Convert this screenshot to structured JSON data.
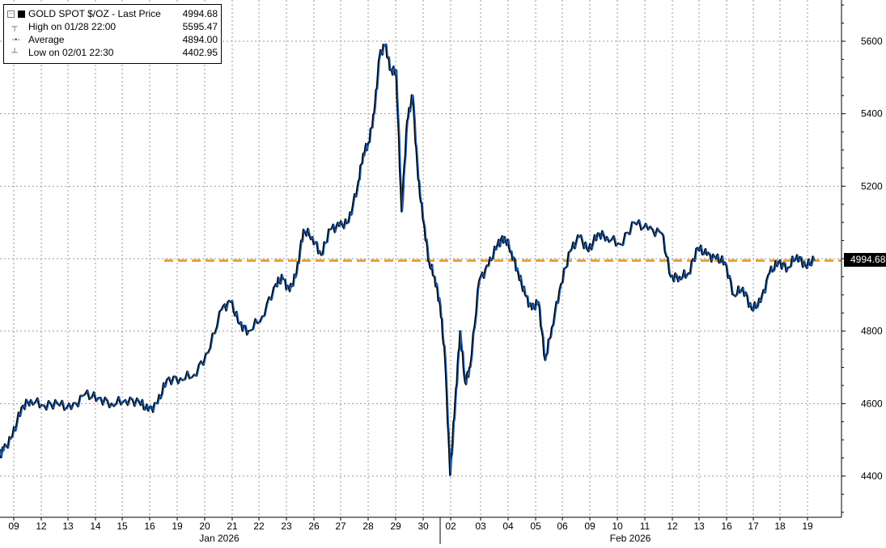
{
  "colors": {
    "price_line": "#1f5fb0",
    "price_shadow": "#000000",
    "average_line": "#f0a133",
    "grid": "#9a9a9a",
    "axis": "#000000"
  },
  "legend": {
    "title": "GOLD SPOT $/OZ - Last Price",
    "title_value": "4994.68",
    "rows": [
      {
        "icon": "high-marker-icon",
        "label": "High on 01/28 22:00",
        "value": "5595.47"
      },
      {
        "icon": "average-marker-icon",
        "label": "Average",
        "value": "4894.00"
      },
      {
        "icon": "low-marker-icon",
        "label": "Low on 02/01 22:30",
        "value": "4402.95"
      }
    ]
  },
  "last_price_tag": "4994.68",
  "chart_data": {
    "type": "line",
    "series": [
      {
        "name": "GOLD SPOT $/OZ - Last Price",
        "points": [
          [
            "01/08",
            4455
          ],
          [
            "01/09",
            4470
          ],
          [
            "01/09",
            4510
          ],
          [
            "01/09",
            4590
          ],
          [
            "01/12",
            4610
          ],
          [
            "01/12",
            4595
          ],
          [
            "01/13",
            4600
          ],
          [
            "01/13",
            4585
          ],
          [
            "01/14",
            4625
          ],
          [
            "01/14",
            4615
          ],
          [
            "01/15",
            4600
          ],
          [
            "01/15",
            4610
          ],
          [
            "01/16",
            4605
          ],
          [
            "01/16",
            4580
          ],
          [
            "01/16",
            4600
          ],
          [
            "01/19",
            4665
          ],
          [
            "01/19",
            4670
          ],
          [
            "01/20",
            4680
          ],
          [
            "01/20",
            4740
          ],
          [
            "01/21",
            4860
          ],
          [
            "01/21",
            4880
          ],
          [
            "01/21",
            4820
          ],
          [
            "01/22",
            4800
          ],
          [
            "01/22",
            4840
          ],
          [
            "01/23",
            4930
          ],
          [
            "01/23",
            4945
          ],
          [
            "01/23",
            4910
          ],
          [
            "01/23",
            4960
          ],
          [
            "01/26",
            5080
          ],
          [
            "01/26",
            5060
          ],
          [
            "01/26",
            5010
          ],
          [
            "01/27",
            5080
          ],
          [
            "01/27",
            5090
          ],
          [
            "01/27",
            5100
          ],
          [
            "01/28",
            5200
          ],
          [
            "01/28",
            5290
          ],
          [
            "01/28",
            5320
          ],
          [
            "01/28",
            5400
          ],
          [
            "01/28",
            5560
          ],
          [
            "01/29",
            5590
          ],
          [
            "01/29",
            5520
          ],
          [
            "01/29",
            5520
          ],
          [
            "01/29",
            5130
          ],
          [
            "01/29",
            5380
          ],
          [
            "01/30",
            5450
          ],
          [
            "01/30",
            5220
          ],
          [
            "01/30",
            5100
          ],
          [
            "01/30",
            4990
          ],
          [
            "01/30",
            4950
          ],
          [
            "02/02",
            4870
          ],
          [
            "02/02",
            4720
          ],
          [
            "02/02",
            4403
          ],
          [
            "02/02",
            4600
          ],
          [
            "02/02",
            4800
          ],
          [
            "02/02",
            4660
          ],
          [
            "02/03",
            4700
          ],
          [
            "02/03",
            4940
          ],
          [
            "02/03",
            4980
          ],
          [
            "02/04",
            5040
          ],
          [
            "02/04",
            5060
          ],
          [
            "02/04",
            5020
          ],
          [
            "02/04",
            4960
          ],
          [
            "02/05",
            4900
          ],
          [
            "02/05",
            4860
          ],
          [
            "02/05",
            4880
          ],
          [
            "02/05",
            4720
          ],
          [
            "02/06",
            4810
          ],
          [
            "02/06",
            4930
          ],
          [
            "02/06",
            5020
          ],
          [
            "02/09",
            5060
          ],
          [
            "02/09",
            5020
          ],
          [
            "02/09",
            5070
          ],
          [
            "02/10",
            5060
          ],
          [
            "02/10",
            5040
          ],
          [
            "02/11",
            5100
          ],
          [
            "02/11",
            5080
          ],
          [
            "02/12",
            5070
          ],
          [
            "02/12",
            4950
          ],
          [
            "02/12",
            4950
          ],
          [
            "02/13",
            4960
          ],
          [
            "02/13",
            5030
          ],
          [
            "02/13",
            5010
          ],
          [
            "02/16",
            5000
          ],
          [
            "02/16",
            4990
          ],
          [
            "02/16",
            4900
          ],
          [
            "02/17",
            4920
          ],
          [
            "02/17",
            4860
          ],
          [
            "02/17",
            4880
          ],
          [
            "02/18",
            4960
          ],
          [
            "02/18",
            4990
          ],
          [
            "02/18",
            4975
          ],
          [
            "02/19",
            5010
          ],
          [
            "02/19",
            4980
          ],
          [
            "02/19",
            4995
          ]
        ]
      },
      {
        "name": "Average",
        "value": 4894.0
      }
    ],
    "marked_line": {
      "value": 4994.68,
      "from": "01/19",
      "to": "02/19"
    },
    "xlabel": "",
    "ylabel": "",
    "ylim": [
      4300,
      5700
    ],
    "yticks": [
      4400,
      4600,
      4800,
      5000,
      5200,
      5400,
      5600
    ],
    "ytick_labels": [
      "4400",
      "4600",
      "4800",
      "",
      "5200",
      "5400",
      "5600"
    ],
    "day_labels": [
      "09",
      "12",
      "13",
      "14",
      "15",
      "16",
      "19",
      "20",
      "21",
      "22",
      "23",
      "26",
      "27",
      "28",
      "29",
      "30",
      "02",
      "03",
      "04",
      "05",
      "06",
      "09",
      "10",
      "11",
      "12",
      "13",
      "16",
      "17",
      "18",
      "19"
    ],
    "month_labels": [
      "Jan 2026",
      "Feb 2026"
    ],
    "grid": true,
    "legend_position": "top-left"
  }
}
